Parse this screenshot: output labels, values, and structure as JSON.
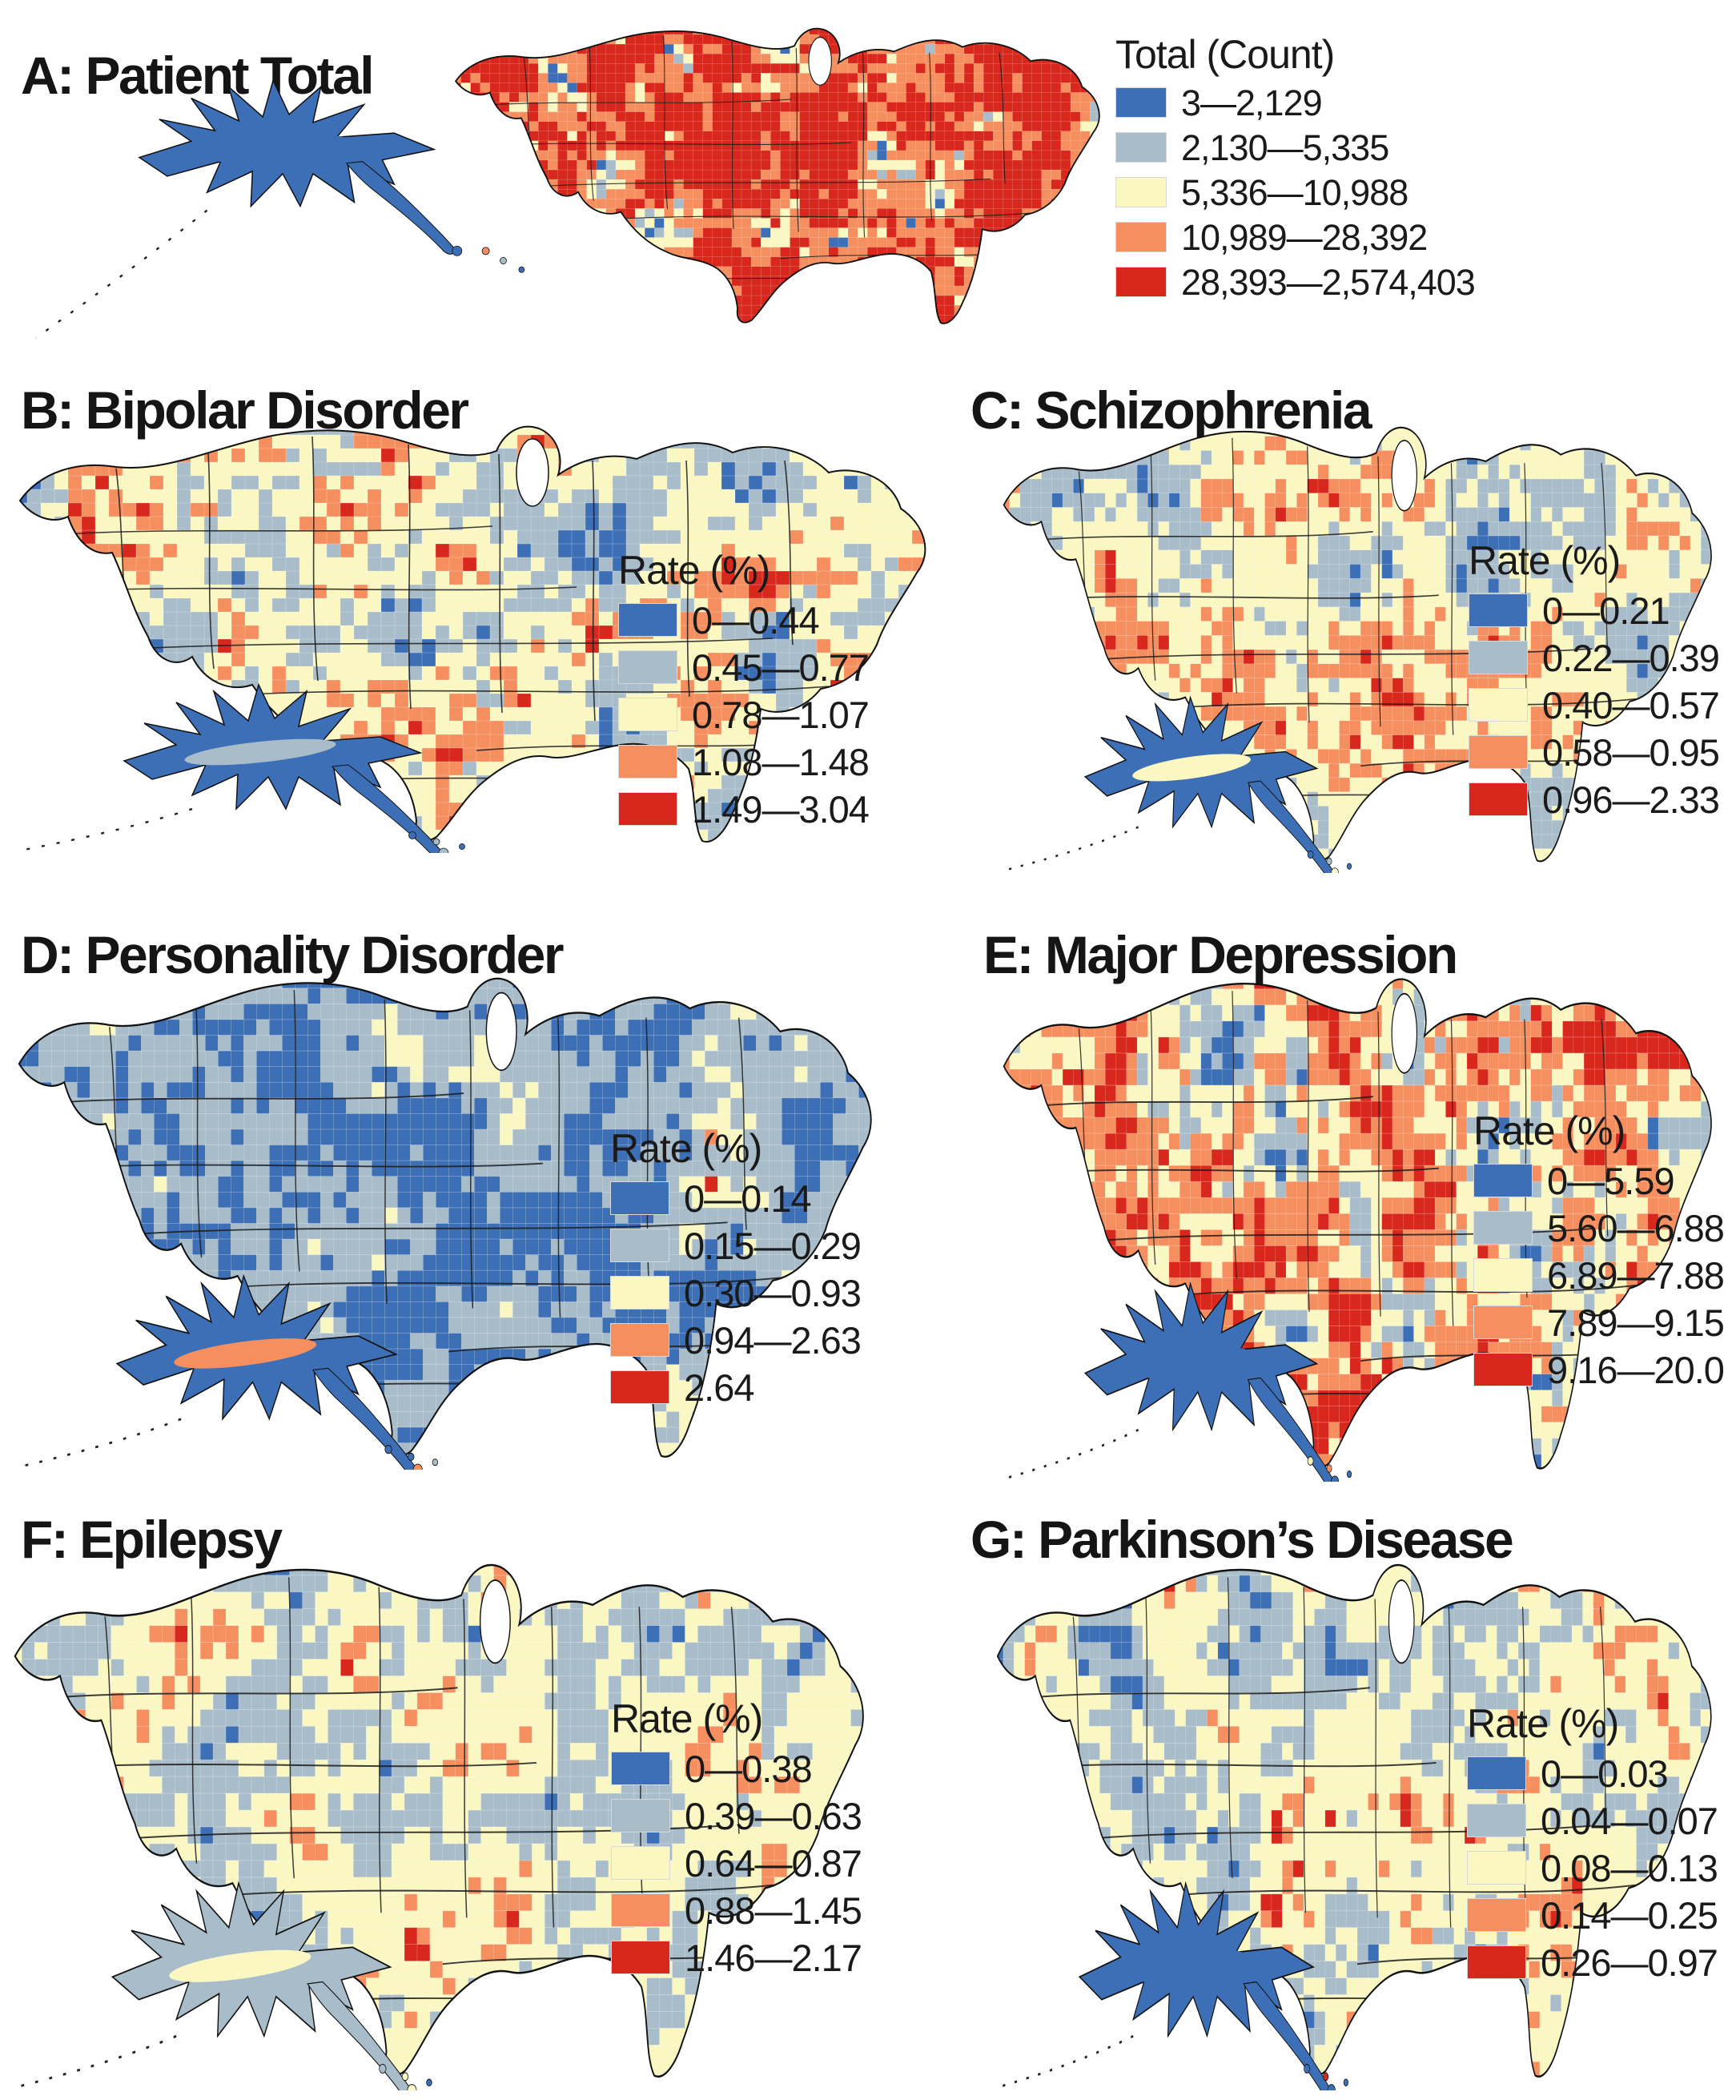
{
  "palette": {
    "class_blue": "#3D6FB6",
    "class_slate": "#A8BDC9",
    "class_yellow": "#FAF7C2",
    "class_orange": "#F68F5F",
    "class_red": "#D8271C",
    "outline": "#111111",
    "text": "#1A1A1A"
  },
  "panels": [
    {
      "id": "A",
      "title": "A: Patient Total",
      "legend_title": "Total (Count)",
      "classes": [
        {
          "label": "3—2,129",
          "color": "#3D6FB6"
        },
        {
          "label": "2,130—5,335",
          "color": "#A8BDC9"
        },
        {
          "label": "5,336—10,988",
          "color": "#FAF7C2"
        },
        {
          "label": "10,989—28,392",
          "color": "#F68F5F"
        },
        {
          "label": "28,393—2,574,403",
          "color": "#D8271C"
        }
      ],
      "map": {
        "variant": "A",
        "seed": 11,
        "shares": [
          0.07,
          0.06,
          0.12,
          0.2,
          0.55
        ],
        "alaska": {
          "body": "#3D6FB6",
          "accent": "#3D6FB6"
        },
        "islands": [
          "#F68F5F",
          "#A8BDC9",
          "#3D6FB6"
        ]
      }
    },
    {
      "id": "B",
      "title": "B: Bipolar Disorder",
      "legend_title": "Rate (%)",
      "classes": [
        {
          "label": "0—0.44",
          "color": "#3D6FB6"
        },
        {
          "label": "0.45—0.77",
          "color": "#A8BDC9"
        },
        {
          "label": "0.78—1.07",
          "color": "#FAF7C2"
        },
        {
          "label": "1.08—1.48",
          "color": "#F68F5F"
        },
        {
          "label": "1.49—3.04",
          "color": "#D8271C"
        }
      ],
      "map": {
        "variant": "main",
        "seed": 22,
        "shares": [
          0.17,
          0.25,
          0.25,
          0.2,
          0.13
        ],
        "alaska": {
          "body": "#3D6FB6",
          "accent": "#A8BDC9"
        },
        "islands": [
          "#3D6FB6",
          "#A8BDC9",
          "#3D6FB6"
        ]
      }
    },
    {
      "id": "C",
      "title": "C: Schizophrenia",
      "legend_title": "Rate (%)",
      "classes": [
        {
          "label": "0—0.21",
          "color": "#3D6FB6"
        },
        {
          "label": "0.22—0.39",
          "color": "#A8BDC9"
        },
        {
          "label": "0.40—0.57",
          "color": "#FAF7C2"
        },
        {
          "label": "0.58—0.95",
          "color": "#F68F5F"
        },
        {
          "label": "0.96—2.33",
          "color": "#D8271C"
        }
      ],
      "map": {
        "variant": "main",
        "seed": 33,
        "shares": [
          0.12,
          0.28,
          0.32,
          0.2,
          0.08
        ],
        "alaska": {
          "body": "#3D6FB6",
          "accent": "#FAF7C2"
        },
        "islands": [
          "#3D6FB6",
          "#A8BDC9",
          "#3D6FB6"
        ]
      }
    },
    {
      "id": "D",
      "title": "D: Personality Disorder",
      "legend_title": "Rate (%)",
      "classes": [
        {
          "label": "0—0.14",
          "color": "#3D6FB6"
        },
        {
          "label": "0.15—0.29",
          "color": "#A8BDC9"
        },
        {
          "label": "0.30—0.93",
          "color": "#FAF7C2"
        },
        {
          "label": "0.94—2.63",
          "color": "#F68F5F"
        },
        {
          "label": "2.64",
          "color": "#D8271C"
        }
      ],
      "map": {
        "variant": "main",
        "seed": 44,
        "shares": [
          0.45,
          0.32,
          0.18,
          0.04,
          0.01
        ],
        "alaska": {
          "body": "#3D6FB6",
          "accent": "#F68F5F"
        },
        "islands": [
          "#3D6FB6",
          "#3D6FB6",
          "#A8BDC9"
        ]
      }
    },
    {
      "id": "E",
      "title": "E: Major Depression",
      "legend_title": "Rate (%)",
      "classes": [
        {
          "label": "0—5.59",
          "color": "#3D6FB6"
        },
        {
          "label": "5.60—6.88",
          "color": "#A8BDC9"
        },
        {
          "label": "6.89—7.88",
          "color": "#FAF7C2"
        },
        {
          "label": "7.89—9.15",
          "color": "#F68F5F"
        },
        {
          "label": "9.16—20.0",
          "color": "#D8271C"
        }
      ],
      "map": {
        "variant": "main",
        "seed": 55,
        "shares": [
          0.14,
          0.18,
          0.18,
          0.2,
          0.3
        ],
        "alaska": {
          "body": "#3D6FB6",
          "accent": "#3D6FB6"
        },
        "islands": [
          "#FAF7C2",
          "#F68F5F",
          "#3D6FB6"
        ]
      }
    },
    {
      "id": "F",
      "title": "F: Epilepsy",
      "legend_title": "Rate (%)",
      "classes": [
        {
          "label": "0—0.38",
          "color": "#3D6FB6"
        },
        {
          "label": "0.39—0.63",
          "color": "#A8BDC9"
        },
        {
          "label": "0.64—0.87",
          "color": "#FAF7C2"
        },
        {
          "label": "0.88—1.45",
          "color": "#F68F5F"
        },
        {
          "label": "1.46—2.17",
          "color": "#D8271C"
        }
      ],
      "map": {
        "variant": "main",
        "seed": 66,
        "shares": [
          0.15,
          0.3,
          0.33,
          0.16,
          0.06
        ],
        "alaska": {
          "body": "#A8BDC9",
          "accent": "#FAF7C2"
        },
        "islands": [
          "#A8BDC9",
          "#FAF7C2",
          "#3D6FB6"
        ]
      }
    },
    {
      "id": "G",
      "title": "G: Parkinson’s Disease",
      "legend_title": "Rate (%)",
      "classes": [
        {
          "label": "0—0.03",
          "color": "#3D6FB6"
        },
        {
          "label": "0.04—0.07",
          "color": "#A8BDC9"
        },
        {
          "label": "0.08—0.13",
          "color": "#FAF7C2"
        },
        {
          "label": "0.14—0.25",
          "color": "#F68F5F"
        },
        {
          "label": "0.26—0.97",
          "color": "#D8271C"
        }
      ],
      "map": {
        "variant": "main",
        "seed": 77,
        "shares": [
          0.18,
          0.27,
          0.33,
          0.14,
          0.08
        ],
        "alaska": {
          "body": "#3D6FB6",
          "accent": "#3D6FB6"
        },
        "islands": [
          "#3D6FB6",
          "#D8271C",
          "#3D6FB6"
        ]
      }
    }
  ],
  "chart_data": [
    {
      "type": "choropleth",
      "title": "Patient Total",
      "legend_title": "Total (Count)",
      "geography": "United States county cartogram",
      "bins": [
        "3—2,129",
        "2,130—5,335",
        "5,336—10,988",
        "10,989—28,392",
        "28,393—2,574,403"
      ]
    },
    {
      "type": "choropleth",
      "title": "Bipolar Disorder",
      "legend_title": "Rate (%)",
      "geography": "United States county cartogram",
      "bins": [
        "0—0.44",
        "0.45—0.77",
        "0.78—1.07",
        "1.08—1.48",
        "1.49—3.04"
      ]
    },
    {
      "type": "choropleth",
      "title": "Schizophrenia",
      "legend_title": "Rate (%)",
      "geography": "United States county cartogram",
      "bins": [
        "0—0.21",
        "0.22—0.39",
        "0.40—0.57",
        "0.58—0.95",
        "0.96—2.33"
      ]
    },
    {
      "type": "choropleth",
      "title": "Personality Disorder",
      "legend_title": "Rate (%)",
      "geography": "United States county cartogram",
      "bins": [
        "0—0.14",
        "0.15—0.29",
        "0.30—0.93",
        "0.94—2.63",
        "2.64"
      ]
    },
    {
      "type": "choropleth",
      "title": "Major Depression",
      "legend_title": "Rate (%)",
      "geography": "United States county cartogram",
      "bins": [
        "0—5.59",
        "5.60—6.88",
        "6.89—7.88",
        "7.89—9.15",
        "9.16—20.0"
      ]
    },
    {
      "type": "choropleth",
      "title": "Epilepsy",
      "legend_title": "Rate (%)",
      "geography": "United States county cartogram",
      "bins": [
        "0—0.38",
        "0.39—0.63",
        "0.64—0.87",
        "0.88—1.45",
        "1.46—2.17"
      ]
    },
    {
      "type": "choropleth",
      "title": "Parkinson’s Disease",
      "legend_title": "Rate (%)",
      "geography": "United States county cartogram",
      "bins": [
        "0—0.03",
        "0.04—0.07",
        "0.08—0.13",
        "0.14—0.25",
        "0.26—0.97"
      ]
    }
  ]
}
